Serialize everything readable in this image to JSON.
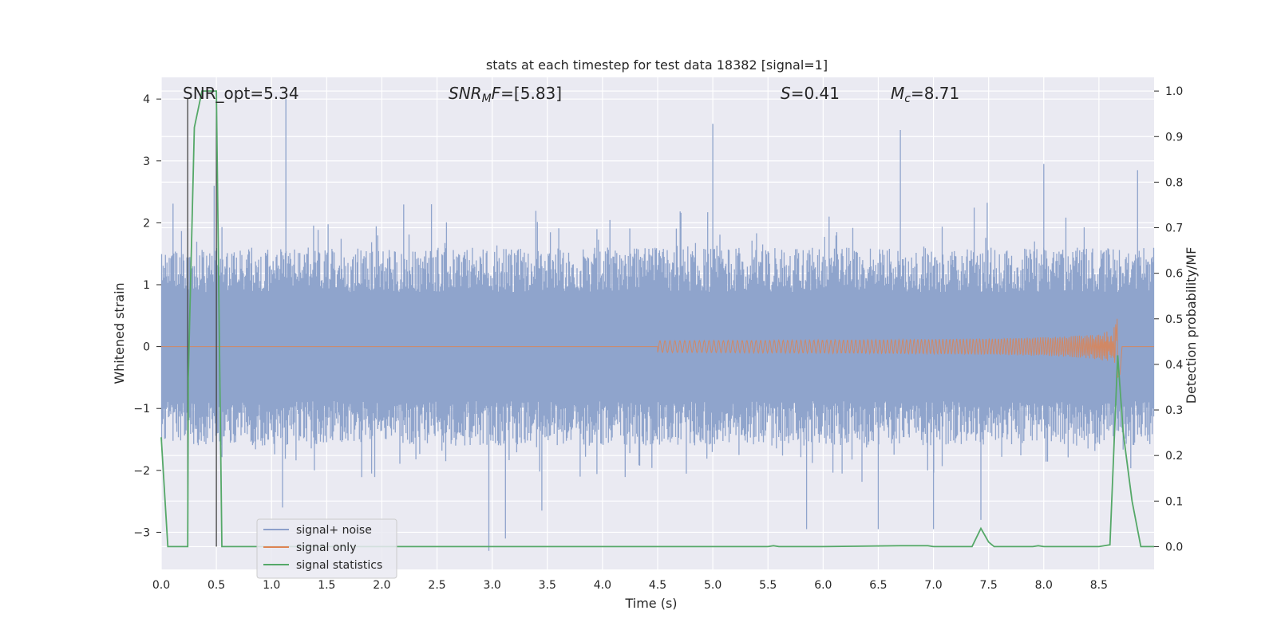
{
  "chart_data": {
    "type": "line",
    "title": "stats at each timestep for test data 18382 [signal=1]",
    "xlabel": "Time (s)",
    "ylabel_left": "Whitened strain",
    "ylabel_right": "Detection probability/MF",
    "xlim": [
      0,
      9.0
    ],
    "ylim_left": [
      -3.6,
      4.35
    ],
    "ylim_right": [
      -0.05,
      1.03
    ],
    "x_ticks": [
      "0.0",
      "0.5",
      "1.0",
      "1.5",
      "2.0",
      "2.5",
      "3.0",
      "3.5",
      "4.0",
      "4.5",
      "5.0",
      "5.5",
      "6.0",
      "6.5",
      "7.0",
      "7.5",
      "8.0",
      "8.5"
    ],
    "y_left_ticks": [
      "−3",
      "−2",
      "−1",
      "0",
      "1",
      "2",
      "3",
      "4"
    ],
    "y_right_ticks": [
      "0.0",
      "0.1",
      "0.2",
      "0.3",
      "0.4",
      "0.5",
      "0.6",
      "0.7",
      "0.8",
      "0.9",
      "1.0"
    ],
    "annotations": {
      "snr_opt": "SNR_opt=5.34",
      "snr_mf_var": "SNR",
      "snr_mf_sub": "M",
      "snr_mf_var2": "F",
      "snr_mf_value": "=[5.83]",
      "s_var": "S",
      "s_value": "=0.41",
      "mc_var": "M",
      "mc_sub": "c",
      "mc_value": "=8.71"
    },
    "vertical_markers_s": [
      0.24,
      0.5
    ],
    "noise_envelope": {
      "typical_max": 1.6,
      "typical_min": -1.6,
      "peaks": [
        [
          1.13,
          4.0
        ],
        [
          5.0,
          3.6
        ],
        [
          6.7,
          3.5
        ],
        [
          8.0,
          2.95
        ],
        [
          8.85,
          2.85
        ],
        [
          2.45,
          2.3
        ],
        [
          0.48,
          2.6
        ]
      ],
      "dips": [
        [
          2.97,
          -3.3
        ],
        [
          3.12,
          -3.1
        ],
        [
          5.85,
          -2.95
        ],
        [
          6.5,
          -2.95
        ],
        [
          7.0,
          -2.95
        ],
        [
          7.43,
          -2.8
        ],
        [
          1.1,
          -2.6
        ],
        [
          3.45,
          -2.65
        ]
      ]
    },
    "signal_only": {
      "start_s": 4.5,
      "merger_s": 8.67,
      "peak_amplitude": 0.65,
      "end_amplitude": -0.45
    },
    "signal_statistics": {
      "x": [
        0.0,
        0.06,
        0.12,
        0.24,
        0.245,
        0.3,
        0.37,
        0.4,
        0.45,
        0.5,
        0.55,
        0.6,
        1.0,
        2.0,
        3.0,
        4.0,
        4.6,
        5.0,
        5.5,
        5.55,
        5.6,
        6.0,
        6.7,
        6.95,
        7.0,
        7.1,
        7.35,
        7.43,
        7.5,
        7.55,
        7.65,
        7.9,
        7.95,
        8.0,
        8.5,
        8.6,
        8.67,
        8.72,
        8.8,
        8.88,
        9.0
      ],
      "values": [
        0.24,
        0.0,
        0.0,
        0.0,
        0.37,
        0.92,
        1.0,
        1.0,
        1.0,
        1.0,
        0.0,
        0.0,
        0.0,
        0.0,
        0.0,
        0.0,
        0.0,
        0.0,
        0.0,
        0.002,
        0.0,
        0.0,
        0.002,
        0.002,
        0.0,
        0.0,
        0.0,
        0.04,
        0.01,
        0.0,
        0.0,
        0.0,
        0.002,
        0.0,
        0.0,
        0.004,
        0.42,
        0.25,
        0.1,
        0.0,
        0.0
      ]
    },
    "legend": {
      "location": "lower-left",
      "entries": [
        {
          "label": "signal+ noise",
          "color": "#8da0cb"
        },
        {
          "label": "signal only",
          "color": "#dd8452"
        },
        {
          "label": "signal statistics",
          "color": "#55a868"
        }
      ]
    },
    "colors": {
      "plot_background": "#eaeaf2",
      "grid": "#ffffff",
      "noise": "#8fa4cc",
      "signal": "#dd8452",
      "stats": "#55a868",
      "marker": "#444444"
    }
  }
}
